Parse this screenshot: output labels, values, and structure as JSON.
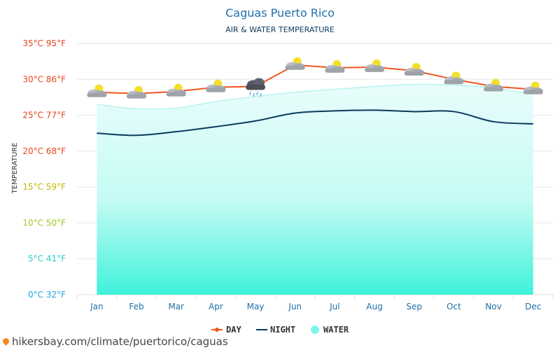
{
  "chart_data": {
    "type": "line",
    "title": "Caguas Puerto Rico",
    "subtitle": "AIR & WATER TEMPERATURE",
    "ylabel": "TEMPERATURE",
    "xlabel": "",
    "ylim": [
      0,
      35
    ],
    "grid": true,
    "legend_position": "bottom",
    "categories": [
      "Jan",
      "Feb",
      "Mar",
      "Apr",
      "May",
      "Jun",
      "Jul",
      "Aug",
      "Sep",
      "Oct",
      "Nov",
      "Dec"
    ],
    "y_ticks": [
      {
        "value": 35,
        "label": "35°C 95°F",
        "color": "#e8431b"
      },
      {
        "value": 30,
        "label": "30°C 86°F",
        "color": "#e8431b"
      },
      {
        "value": 25,
        "label": "25°C 77°F",
        "color": "#e8431b"
      },
      {
        "value": 20,
        "label": "20°C 68°F",
        "color": "#e8431b"
      },
      {
        "value": 15,
        "label": "15°C 59°F",
        "color": "#c8b400"
      },
      {
        "value": 10,
        "label": "10°C 50°F",
        "color": "#9cc81e"
      },
      {
        "value": 5,
        "label": "5°C 41°F",
        "color": "#24c8c8"
      },
      {
        "value": 0,
        "label": "0°C 32°F",
        "color": "#1ea6e0"
      }
    ],
    "series": [
      {
        "name": "DAY",
        "color": "#f0561e",
        "values": [
          28.2,
          28.0,
          28.3,
          28.9,
          29.0,
          32.0,
          31.6,
          31.7,
          31.2,
          30.0,
          29.0,
          28.6
        ]
      },
      {
        "name": "NIGHT",
        "color": "#0b3a5e",
        "values": [
          22.5,
          22.2,
          22.7,
          23.4,
          24.2,
          25.3,
          25.6,
          25.7,
          25.5,
          25.5,
          24.1,
          23.8
        ]
      },
      {
        "name": "WATER",
        "color": "#7cf6ec",
        "values": [
          26.5,
          25.9,
          26.0,
          26.9,
          27.6,
          28.2,
          28.6,
          29.0,
          29.3,
          29.2,
          28.8,
          27.9
        ]
      }
    ],
    "weather_icons": [
      "partly-cloudy",
      "partly-cloudy",
      "partly-cloudy",
      "partly-cloudy",
      "rain-cloud",
      "partly-cloudy",
      "partly-cloudy",
      "partly-cloudy",
      "partly-cloudy",
      "partly-cloudy",
      "partly-cloudy",
      "partly-cloudy"
    ]
  },
  "footer": {
    "icon": "location-pin-icon",
    "text": "hikersbay.com/climate/puertorico/caguas"
  },
  "colors": {
    "title": "#1f6fa8",
    "subtitle": "#0b3a5e",
    "grid": "#e6e6e6",
    "axis_text": "#1f6fa8"
  }
}
